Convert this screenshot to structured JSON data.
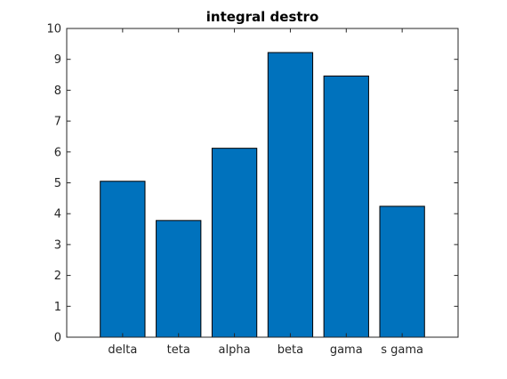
{
  "chart_data": {
    "type": "bar",
    "title": "integral destro",
    "xlabel": "",
    "ylabel": "",
    "categories": [
      "delta",
      "teta",
      "alpha",
      "beta",
      "gama",
      "s gama"
    ],
    "values": [
      5.05,
      3.78,
      6.12,
      9.22,
      8.46,
      4.24
    ],
    "ylim": [
      0,
      10
    ],
    "yticks": [
      0,
      1,
      2,
      3,
      4,
      5,
      6,
      7,
      8,
      9,
      10
    ],
    "grid": false,
    "bar_color": "#0072bd",
    "bar_edge_color": "#000000",
    "axis_color": "#262626"
  }
}
